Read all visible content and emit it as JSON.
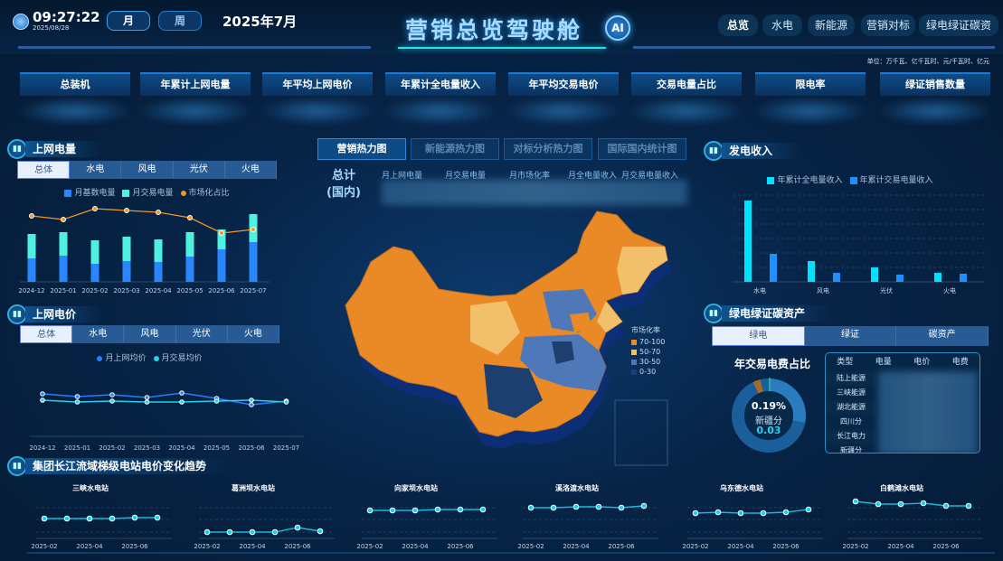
{
  "header": {
    "time": "09:27:22",
    "date": "2025/08/28",
    "period_buttons": [
      "月",
      "周"
    ],
    "current_period": "2025年7月",
    "title": "营销总览驾驶舱",
    "ai_label": "AI",
    "nav": [
      "总览",
      "水电",
      "新能源",
      "营销对标",
      "绿电绿证碳资"
    ],
    "active_nav": "总览",
    "units": "单位：万千瓦、亿千瓦时、元/千瓦时、亿元"
  },
  "kpis": [
    "总装机",
    "年累计上网电量",
    "年平均上网电价",
    "年累计全电量收入",
    "年平均交易电价",
    "交易电量占比",
    "限电率",
    "绿证销售数量"
  ],
  "grid_power": {
    "title": "上网电量",
    "tabs": [
      "总体",
      "水电",
      "风电",
      "光伏",
      "火电"
    ],
    "active_tab": "总体",
    "chart_data": {
      "type": "bar",
      "stacked": true,
      "categories": [
        "2024-12",
        "2025-01",
        "2025-02",
        "2025-03",
        "2025-04",
        "2025-05",
        "2025-06",
        "2025-07"
      ],
      "series": [
        {
          "name": "月基数电量",
          "color": "#2a86ff",
          "values": [
            26,
            29,
            20,
            23,
            22,
            28,
            36,
            44
          ]
        },
        {
          "name": "月交易电量",
          "color": "#4ef0e0",
          "values": [
            27,
            26,
            26,
            27,
            25,
            27,
            22,
            31
          ]
        },
        {
          "name": "市场化占比",
          "type": "line",
          "color": "#f0962a",
          "values": [
            74,
            70,
            82,
            80,
            78,
            72,
            55,
            59
          ]
        }
      ]
    }
  },
  "grid_price": {
    "title": "上网电价",
    "tabs": [
      "总体",
      "水电",
      "风电",
      "光伏",
      "火电"
    ],
    "active_tab": "总体",
    "chart_data": {
      "type": "line",
      "categories": [
        "2024-12",
        "2025-01",
        "2025-02",
        "2025-03",
        "2025-04",
        "2025-05",
        "2025-06",
        "2025-07"
      ],
      "series": [
        {
          "name": "月上网均价",
          "color": "#2a7cff",
          "values": [
            69,
            66,
            68,
            65,
            70,
            64,
            57,
            61
          ]
        },
        {
          "name": "月交易均价",
          "color": "#2ad0e8",
          "values": [
            62,
            60,
            61,
            60,
            60,
            61,
            62,
            60
          ]
        }
      ]
    }
  },
  "center": {
    "tabs": [
      "营销热力图",
      "新能源热力图",
      "对标分析热力图",
      "国际国内统计图"
    ],
    "active_tab": "营销热力图",
    "summary_label": "总计\n(国内)",
    "summary_cols": [
      "月上网电量",
      "月交易电量",
      "月市场化率",
      "月全电量收入",
      "月交易电量收入"
    ],
    "legend": {
      "title": "市场化率",
      "items": [
        {
          "label": "70-100",
          "color": "#ee8a22"
        },
        {
          "label": "50-70",
          "color": "#f2c06a"
        },
        {
          "label": "30-50",
          "color": "#4f78b8"
        },
        {
          "label": "0-30",
          "color": "#1d3f70"
        }
      ]
    }
  },
  "revenue": {
    "title": "发电收入",
    "chart_data": {
      "type": "bar",
      "categories": [
        "水电",
        "风电",
        "光伏",
        "火电"
      ],
      "series": [
        {
          "name": "年累计全电量收入",
          "color": "#00e0ff",
          "values": [
            90,
            23,
            16,
            10
          ]
        },
        {
          "name": "年累计交易电量收入",
          "color": "#1e90ff",
          "values": [
            31,
            10,
            8,
            9
          ]
        }
      ]
    }
  },
  "green": {
    "title": "绿电绿证碳资产",
    "tabs": [
      "绿电",
      "绿证",
      "碳资产"
    ],
    "active_tab": "绿电",
    "donut_title": "年交易电费占比",
    "donut_pct": "0.19%",
    "donut_name": "新疆分",
    "donut_value": "0.03",
    "table": {
      "headers": [
        "类型",
        "电量",
        "电价",
        "电费"
      ],
      "rows": [
        "陆上能源",
        "三峡能源",
        "湖北能源",
        "四川分",
        "长江电力",
        "新疆分"
      ]
    }
  },
  "stations": {
    "title": "集团长江流域梯级电站电价变化趋势",
    "ticks": [
      "2025-02",
      "2025-04",
      "2025-06"
    ],
    "chart_data": [
      {
        "type": "line",
        "title": "三峡水电站",
        "x": [
          "2025-02",
          "2025-03",
          "2025-04",
          "2025-05",
          "2025-06",
          "2025-07"
        ],
        "values": [
          20,
          20,
          20,
          20,
          21,
          21
        ]
      },
      {
        "type": "line",
        "title": "葛洲坝水电站",
        "x": [
          "2025-02",
          "2025-03",
          "2025-04",
          "2025-05",
          "2025-06",
          "2025-07"
        ],
        "values": [
          5,
          5,
          5,
          5,
          10,
          6
        ]
      },
      {
        "type": "line",
        "title": "向家坝水电站",
        "x": [
          "2025-02",
          "2025-03",
          "2025-04",
          "2025-05",
          "2025-06",
          "2025-07"
        ],
        "values": [
          29,
          29,
          29,
          30,
          30,
          30
        ]
      },
      {
        "type": "line",
        "title": "溪洛渡水电站",
        "x": [
          "2025-02",
          "2025-03",
          "2025-04",
          "2025-05",
          "2025-06",
          "2025-07"
        ],
        "values": [
          32,
          32,
          33,
          33,
          32,
          34
        ]
      },
      {
        "type": "line",
        "title": "乌东德水电站",
        "x": [
          "2025-02",
          "2025-03",
          "2025-04",
          "2025-05",
          "2025-06",
          "2025-07"
        ],
        "values": [
          26,
          27,
          26,
          26,
          27,
          30
        ]
      },
      {
        "type": "line",
        "title": "白鹤滩水电站",
        "x": [
          "2025-02",
          "2025-03",
          "2025-04",
          "2025-05",
          "2025-06",
          "2025-07"
        ],
        "values": [
          39,
          36,
          36,
          37,
          34,
          34
        ]
      }
    ]
  }
}
